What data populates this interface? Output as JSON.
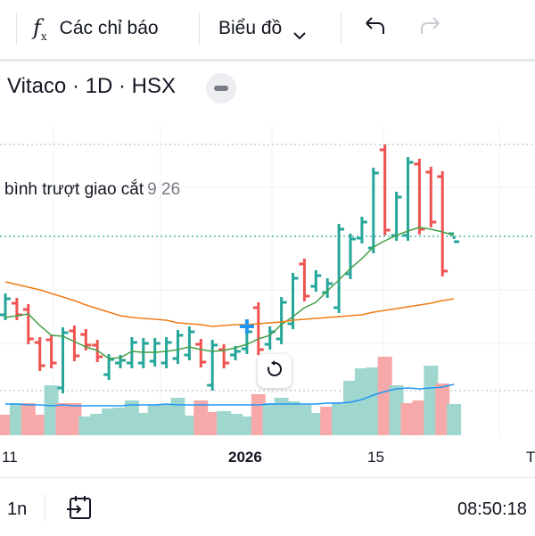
{
  "toolbar": {
    "indicators_icon": "function-fx-icon",
    "indicators_label": "Các chỉ báo",
    "chart_type_label": "Biểu đồ",
    "chart_type_icon": "chevron-down-icon",
    "undo_icon": "undo-icon",
    "redo_icon": "redo-icon"
  },
  "legend": {
    "symbol_info": "Vitaco · 1D · HSX",
    "collapse_icon": "minus-icon",
    "indicator_name": "bình trượt giao cắt",
    "indicator_params": "9 26"
  },
  "colors": {
    "up": "#26a69a",
    "down": "#ef5350",
    "ma_fast": "#43a047",
    "ma_slow": "#ef7c17",
    "vol_ma": "#2196f3",
    "cursor": "#2196f3"
  },
  "chart_data": {
    "type": "bar",
    "bars": [
      [
        329,
        359,
        1
      ],
      [
        334,
        359,
        0
      ],
      [
        341,
        386,
        0
      ],
      [
        378,
        416,
        0
      ],
      [
        375,
        413,
        0
      ],
      [
        367,
        441,
        1
      ],
      [
        365,
        405,
        0
      ],
      [
        369,
        393,
        0
      ],
      [
        381,
        406,
        0
      ],
      [
        397,
        426,
        1
      ],
      [
        398,
        413,
        1
      ],
      [
        378,
        413,
        1
      ],
      [
        379,
        413,
        1
      ],
      [
        379,
        411,
        1
      ],
      [
        378,
        413,
        1
      ],
      [
        370,
        408,
        1
      ],
      [
        366,
        404,
        1
      ],
      [
        380,
        412,
        0
      ],
      [
        381,
        438,
        1
      ],
      [
        386,
        413,
        0
      ],
      [
        388,
        404,
        1
      ],
      [
        366,
        397,
        1
      ],
      [
        339,
        398,
        0
      ],
      [
        366,
        392,
        1
      ],
      [
        333,
        386,
        1
      ],
      [
        306,
        369,
        1
      ],
      [
        290,
        338,
        0
      ],
      [
        303,
        327,
        1
      ],
      [
        312,
        334,
        1
      ],
      [
        251,
        351,
        1
      ],
      [
        262,
        313,
        1
      ],
      [
        243,
        273,
        1
      ],
      [
        188,
        284,
        1
      ],
      [
        162,
        264,
        0
      ],
      [
        215,
        270,
        1
      ],
      [
        176,
        270,
        1
      ],
      [
        178,
        263,
        0
      ],
      [
        187,
        255,
        0
      ],
      [
        192,
        310,
        0
      ],
      [
        265,
        268,
        1
      ]
    ],
    "ma9": [
      356,
      354,
      352,
      365,
      376,
      377,
      383,
      389,
      393,
      402,
      401,
      394,
      395,
      395,
      394,
      392,
      389,
      392,
      394,
      393,
      390,
      386,
      380,
      376,
      364,
      355,
      345,
      339,
      326,
      314,
      301,
      290,
      277,
      270,
      264,
      259,
      255,
      257,
      260,
      264
    ],
    "ma26": [
      316,
      319,
      322,
      325,
      329,
      333,
      337,
      342,
      346,
      350,
      354,
      356,
      357,
      358,
      359,
      362,
      363,
      364,
      366,
      365,
      364,
      364,
      363,
      362,
      361,
      359,
      358,
      357,
      356,
      355,
      354,
      353,
      350,
      348,
      346,
      344,
      342,
      340,
      337,
      335
    ],
    "volumes": [
      [
        3,
        0
      ],
      [
        16,
        1
      ],
      [
        16,
        0
      ],
      [
        3,
        0
      ],
      [
        36,
        1
      ],
      [
        16,
        0
      ],
      [
        16,
        0
      ],
      [
        1,
        1
      ],
      [
        4,
        1
      ],
      [
        10,
        1
      ],
      [
        11,
        1
      ],
      [
        19,
        1
      ],
      [
        5,
        1
      ],
      [
        14,
        1
      ],
      [
        14,
        1
      ],
      [
        22,
        1
      ],
      [
        2,
        1
      ],
      [
        19,
        0
      ],
      [
        6,
        0
      ],
      [
        7,
        1
      ],
      [
        4,
        1
      ],
      [
        0,
        1
      ],
      [
        26,
        0
      ],
      [
        16,
        1
      ],
      [
        22,
        1
      ],
      [
        18,
        1
      ],
      [
        14,
        1
      ],
      [
        5,
        1
      ],
      [
        12,
        0
      ],
      [
        17,
        1
      ],
      [
        41,
        1
      ],
      [
        55,
        1
      ],
      [
        56,
        1
      ],
      [
        68,
        0
      ],
      [
        36,
        1
      ],
      [
        16,
        0
      ],
      [
        19,
        0
      ],
      [
        58,
        1
      ],
      [
        38,
        0
      ],
      [
        15,
        1
      ]
    ],
    "vol_ma": [
      15,
      15,
      14,
      14,
      13,
      14,
      13,
      13,
      13,
      13,
      13,
      14,
      14,
      14,
      15,
      14,
      14,
      14,
      14,
      14,
      14,
      14,
      14,
      15,
      15,
      15,
      15,
      15,
      16,
      16,
      17,
      20,
      25,
      29,
      32,
      33,
      32,
      33,
      34,
      37
    ],
    "price_scale": {
      "ref_line": 265,
      "high_line": 162,
      "vol_base": 438
    },
    "cursor": {
      "index": 21,
      "value": 366
    },
    "x_ticks": [
      "11",
      "2026",
      "15",
      "T"
    ]
  },
  "bottom": {
    "interval": "1n",
    "goto_icon": "calendar-goto-icon",
    "time": "08:50:18"
  },
  "reset_icon": "reset-rotate-icon"
}
